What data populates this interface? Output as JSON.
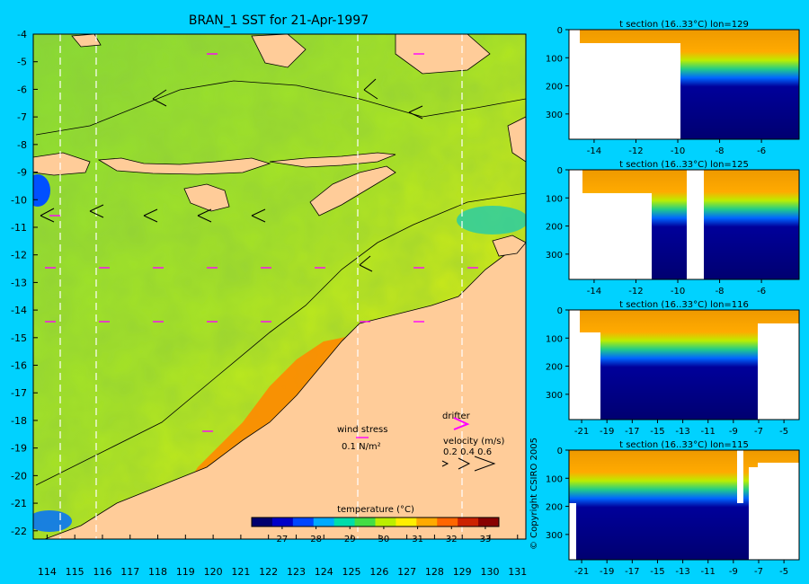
{
  "chart_data": [
    {
      "type": "heatmap",
      "title": "BRAN_1 SST for 21-Apr-1997",
      "x_ticks": [
        114,
        115,
        116,
        117,
        118,
        119,
        120,
        121,
        122,
        123,
        124,
        125,
        126,
        127,
        128,
        129,
        130,
        131
      ],
      "y_ticks": [
        -4,
        -5,
        -6,
        -7,
        -8,
        -9,
        -10,
        -11,
        -12,
        -13,
        -14,
        -15,
        -16,
        -17,
        -18,
        -19,
        -20,
        -21,
        -22
      ],
      "xlim": [
        113.5,
        131.3
      ],
      "ylim": [
        -22.3,
        -4
      ],
      "colorbar": {
        "label": "temperature (°C)",
        "ticks": [
          27,
          28,
          29,
          30,
          31,
          32,
          33
        ],
        "range": [
          26.1,
          33.4
        ],
        "colors": [
          "#00006e",
          "#0000c8",
          "#0046ff",
          "#00aaff",
          "#00ddaa",
          "#44dd44",
          "#bbee00",
          "#ffee00",
          "#ffaa00",
          "#ff6600",
          "#cc2200",
          "#880000"
        ]
      },
      "legend": {
        "wind_label": "wind stress",
        "wind_scale": "0.1 N/m²",
        "drifter_label": "drifter",
        "velocity_label": "velocity (m/s)",
        "velocity_values": "0.2 0.4 0.6"
      }
    },
    {
      "type": "heatmap",
      "title": "t section (16..33°C) lon=129",
      "x_ticks": [
        -14,
        -12,
        -10,
        -8,
        -6
      ],
      "y_ticks": [
        0,
        100,
        200,
        300
      ],
      "xlim": [
        -15.2,
        -4.2
      ],
      "ylim": [
        0,
        390
      ]
    },
    {
      "type": "heatmap",
      "title": "t section (16..33°C) lon=125",
      "x_ticks": [
        -14,
        -12,
        -10,
        -8,
        -6
      ],
      "y_ticks": [
        0,
        100,
        200,
        300
      ],
      "xlim": [
        -15.2,
        -4.2
      ],
      "ylim": [
        0,
        390
      ]
    },
    {
      "type": "heatmap",
      "title": "t section (16..33°C) lon=116",
      "x_ticks": [
        -21,
        -19,
        -17,
        -15,
        -13,
        -11,
        -9,
        -7,
        -5
      ],
      "y_ticks": [
        0,
        100,
        200,
        300
      ],
      "xlim": [
        -22,
        -3.8
      ],
      "ylim": [
        0,
        390
      ]
    },
    {
      "type": "heatmap",
      "title": "t section (16..33°C) lon=115",
      "x_ticks": [
        -21,
        -19,
        -17,
        -15,
        -13,
        -11,
        -9,
        -7,
        -5
      ],
      "y_ticks": [
        0,
        100,
        200,
        300
      ],
      "xlim": [
        -22,
        -3.8
      ],
      "ylim": [
        0,
        390
      ]
    }
  ],
  "copyright": "© Copyright CSIRO 2005"
}
